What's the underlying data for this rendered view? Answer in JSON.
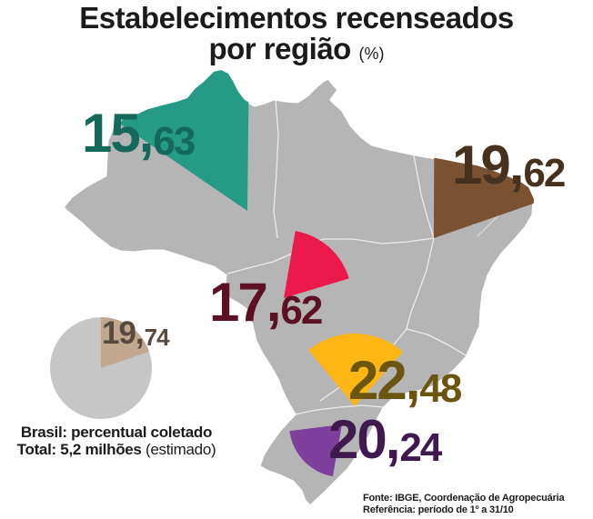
{
  "title": {
    "line1": "Estabelecimentos recenseados",
    "line2": "por região",
    "unit": "(%)"
  },
  "regions": [
    {
      "name": "Norte",
      "value": "15,63",
      "int_part": "15,",
      "dec_part": "63",
      "wedge_color": "#259b85",
      "label_color": "#14695a"
    },
    {
      "name": "Nordeste",
      "value": "19,62",
      "int_part": "19,",
      "dec_part": "62",
      "wedge_color": "#7a5231",
      "label_color": "#46301e"
    },
    {
      "name": "Centro-Oeste",
      "value": "17,62",
      "int_part": "17,",
      "dec_part": "62",
      "wedge_color": "#ec1a4b",
      "label_color": "#5d1023"
    },
    {
      "name": "Sudeste",
      "value": "22,48",
      "int_part": "22,",
      "dec_part": "48",
      "wedge_color": "#fdb614",
      "label_color": "#6b550f"
    },
    {
      "name": "Sul",
      "value": "20,24",
      "int_part": "20,",
      "dec_part": "24",
      "wedge_color": "#7e3f9d",
      "label_color": "#40194f"
    }
  ],
  "pie": {
    "value": "19,74",
    "int_part": "19,",
    "dec_part": "74",
    "percent": 19.74,
    "slice_color": "#c0a78e",
    "base_color": "#c6c6c6",
    "label_color": "#57493b"
  },
  "caption": {
    "line1": "Brasil: percentual coletado",
    "line2_bold": "Total: 5,2 milhões",
    "line2_regular": "(estimado)"
  },
  "source": {
    "line1": "Fonte: IBGE, Coordenação de Agropecuária",
    "line2": "Referência: período de 1º a 31/10"
  },
  "map": {
    "fill": "#b5b5b5",
    "border": "#ffffff"
  },
  "chart_data": {
    "type": "map-pie-infographic",
    "title": "Estabelecimentos recenseados por região (%)",
    "categories": [
      "Norte",
      "Nordeste",
      "Centro-Oeste",
      "Sudeste",
      "Sul"
    ],
    "values": [
      15.63,
      19.62,
      17.62,
      22.48,
      20.24
    ],
    "unit": "%",
    "national_pie": {
      "label": "Brasil: percentual coletado",
      "value": 19.74,
      "total": "5,2 milhões (estimado)"
    },
    "legend_position": "none",
    "grid": false
  }
}
